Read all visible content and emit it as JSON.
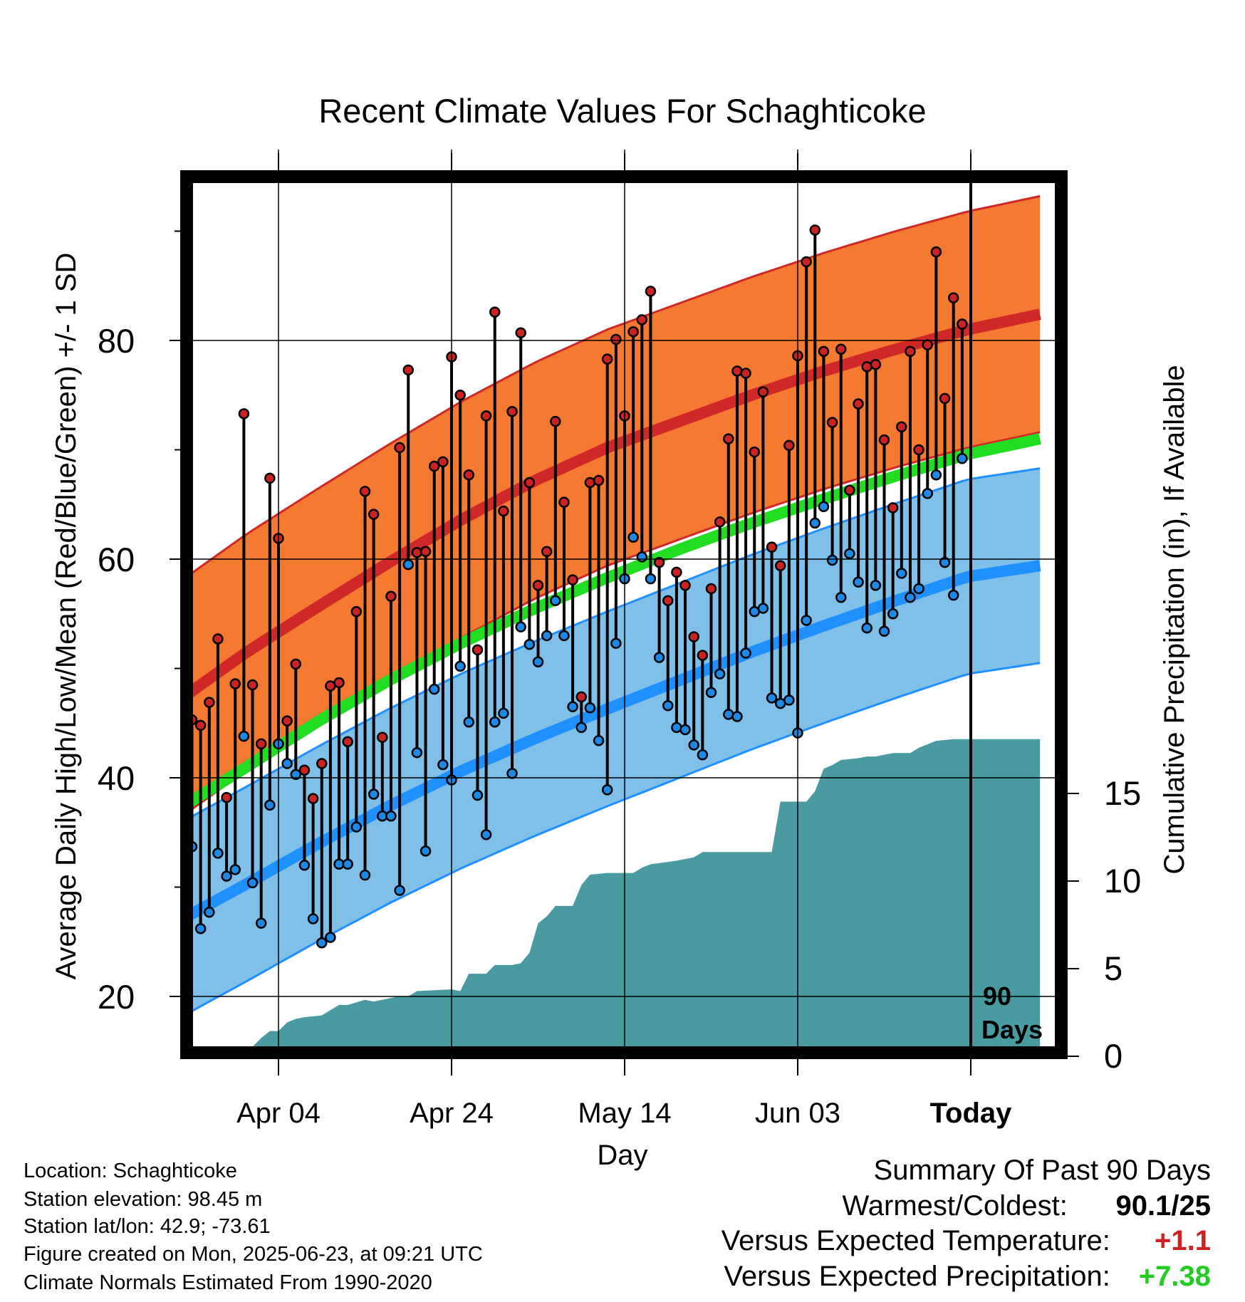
{
  "chart_data": {
    "type": "line",
    "title": "Recent Climate Values For Schaghticoke",
    "xlabel": "Day",
    "ylabel": "Average Daily High/Low/Mean (Red/Blue/Green) +/- 1 SD",
    "y2label": "Cumulative Precipitation (in), If Available",
    "x_tick_labels": [
      "Apr 04",
      "Apr 24",
      "May 14",
      "Jun 03",
      "Today"
    ],
    "y_ticks": [
      20,
      40,
      60,
      80
    ],
    "y2_ticks": [
      0,
      5,
      10,
      15
    ],
    "ylim": [
      15,
      97
    ],
    "y2lim": [
      0,
      30.3
    ],
    "today_marker_label": [
      "90",
      "Days"
    ],
    "colors": {
      "high_band": "#f47a32",
      "high_line": "#d02828",
      "low_band": "#80c0e8",
      "low_line": "#1e90ff",
      "mean_line": "#22dd22",
      "precip": "#4a9aa2",
      "high_dot": "#cc2222",
      "low_dot": "#1e88e5"
    },
    "normals": {
      "x_start": -12,
      "x_end": 88,
      "high_mean": [
        46.8,
        51.5,
        55.7,
        59.8,
        63.7,
        67.2,
        70.2,
        72.6,
        75.0,
        77.2,
        79.2,
        81.0,
        82.4
      ],
      "high_sd": 10.8,
      "low_mean": [
        26.7,
        30.3,
        34.0,
        37.5,
        40.7,
        43.6,
        46.3,
        48.9,
        51.5,
        53.9,
        56.2,
        58.4,
        59.4
      ],
      "low_sd": 8.9,
      "mean": [
        36.9,
        41.0,
        45.2,
        49.0,
        52.4,
        55.5,
        58.3,
        60.9,
        63.3,
        65.5,
        67.6,
        69.6,
        71.0
      ]
    },
    "daily": [
      {
        "day": -10,
        "high": 45.3,
        "low": 33.7
      },
      {
        "day": -9,
        "high": 44.8,
        "low": 26.2
      },
      {
        "day": -8,
        "high": 46.9,
        "low": 27.7
      },
      {
        "day": -7,
        "high": 52.7,
        "low": 33.1
      },
      {
        "day": -6,
        "high": 38.2,
        "low": 31.0
      },
      {
        "day": -5,
        "high": 48.6,
        "low": 31.6
      },
      {
        "day": -4,
        "high": 73.3,
        "low": 43.8
      },
      {
        "day": -3,
        "high": 48.5,
        "low": 30.4
      },
      {
        "day": -2,
        "high": 43.1,
        "low": 26.7
      },
      {
        "day": -1,
        "high": 67.4,
        "low": 37.5
      },
      {
        "day": 0,
        "high": 61.9,
        "low": 43.1
      },
      {
        "day": 1,
        "high": 45.2,
        "low": 41.3
      },
      {
        "day": 2,
        "high": 50.4,
        "low": 40.3
      },
      {
        "day": 3,
        "high": 40.7,
        "low": 32.0
      },
      {
        "day": 4,
        "high": 38.1,
        "low": 27.1
      },
      {
        "day": 5,
        "high": 41.3,
        "low": 24.9
      },
      {
        "day": 6,
        "high": 48.4,
        "low": 25.4
      },
      {
        "day": 7,
        "high": 48.7,
        "low": 32.1
      },
      {
        "day": 8,
        "high": 43.3,
        "low": 32.1
      },
      {
        "day": 9,
        "high": 55.2,
        "low": 35.5
      },
      {
        "day": 10,
        "high": 66.2,
        "low": 31.1
      },
      {
        "day": 11,
        "high": 64.1,
        "low": 38.5
      },
      {
        "day": 12,
        "high": 43.7,
        "low": 36.5
      },
      {
        "day": 13,
        "high": 56.6,
        "low": 36.5
      },
      {
        "day": 14,
        "high": 70.2,
        "low": 29.7
      },
      {
        "day": 15,
        "high": 77.3,
        "low": 59.5
      },
      {
        "day": 16,
        "high": 60.6,
        "low": 42.3
      },
      {
        "day": 17,
        "high": 60.7,
        "low": 33.3
      },
      {
        "day": 18,
        "high": 68.5,
        "low": 48.1
      },
      {
        "day": 19,
        "high": 68.9,
        "low": 41.2
      },
      {
        "day": 20,
        "high": 78.5,
        "low": 39.8
      },
      {
        "day": 21,
        "high": 75.0,
        "low": 50.2
      },
      {
        "day": 22,
        "high": 67.7,
        "low": 45.1
      },
      {
        "day": 23,
        "high": 51.7,
        "low": 38.4
      },
      {
        "day": 24,
        "high": 73.1,
        "low": 34.8
      },
      {
        "day": 25,
        "high": 82.6,
        "low": 45.1
      },
      {
        "day": 26,
        "high": 64.4,
        "low": 45.9
      },
      {
        "day": 27,
        "high": 73.5,
        "low": 40.4
      },
      {
        "day": 28,
        "high": 80.7,
        "low": 53.8
      },
      {
        "day": 29,
        "high": 67.0,
        "low": 52.2
      },
      {
        "day": 30,
        "high": 57.6,
        "low": 50.6
      },
      {
        "day": 31,
        "high": 60.7,
        "low": 53.0
      },
      {
        "day": 32,
        "high": 72.6,
        "low": 56.2
      },
      {
        "day": 33,
        "high": 65.2,
        "low": 53.0
      },
      {
        "day": 34,
        "high": 58.1,
        "low": 46.5
      },
      {
        "day": 35,
        "high": 47.4,
        "low": 44.6
      },
      {
        "day": 36,
        "high": 67.0,
        "low": 46.4
      },
      {
        "day": 37,
        "high": 67.2,
        "low": 43.4
      },
      {
        "day": 38,
        "high": 78.3,
        "low": 38.9
      },
      {
        "day": 39,
        "high": 80.1,
        "low": 52.3
      },
      {
        "day": 40,
        "high": 73.1,
        "low": 58.2
      },
      {
        "day": 41,
        "high": 80.8,
        "low": 62.0
      },
      {
        "day": 42,
        "high": 81.9,
        "low": 60.2
      },
      {
        "day": 43,
        "high": 84.5,
        "low": 58.2
      },
      {
        "day": 44,
        "high": 59.7,
        "low": 51.0
      },
      {
        "day": 45,
        "high": 56.2,
        "low": 46.6
      },
      {
        "day": 46,
        "high": 58.8,
        "low": 44.6
      },
      {
        "day": 47,
        "high": 57.6,
        "low": 44.4
      },
      {
        "day": 48,
        "high": 52.9,
        "low": 43.0
      },
      {
        "day": 49,
        "high": 51.2,
        "low": 42.1
      },
      {
        "day": 50,
        "high": 57.3,
        "low": 47.8
      },
      {
        "day": 51,
        "high": 63.4,
        "low": 49.5
      },
      {
        "day": 52,
        "high": 71.0,
        "low": 45.8
      },
      {
        "day": 53,
        "high": 77.2,
        "low": 45.6
      },
      {
        "day": 54,
        "high": 77.0,
        "low": 51.4
      },
      {
        "day": 55,
        "high": 69.8,
        "low": 55.2
      },
      {
        "day": 56,
        "high": 75.3,
        "low": 55.5
      },
      {
        "day": 57,
        "high": 61.1,
        "low": 47.3
      },
      {
        "day": 58,
        "high": 59.4,
        "low": 46.8
      },
      {
        "day": 59,
        "high": 70.4,
        "low": 47.1
      },
      {
        "day": 60,
        "high": 78.6,
        "low": 44.1
      },
      {
        "day": 61,
        "high": 87.2,
        "low": 54.4
      },
      {
        "day": 62,
        "high": 90.1,
        "low": 63.3
      },
      {
        "day": 63,
        "high": 79.0,
        "low": 64.8
      },
      {
        "day": 64,
        "high": 72.5,
        "low": 59.9
      },
      {
        "day": 65,
        "high": 79.2,
        "low": 56.5
      },
      {
        "day": 66,
        "high": 66.3,
        "low": 60.5
      },
      {
        "day": 67,
        "high": 74.2,
        "low": 57.9
      },
      {
        "day": 68,
        "high": 77.6,
        "low": 53.7
      },
      {
        "day": 69,
        "high": 77.8,
        "low": 57.6
      },
      {
        "day": 70,
        "high": 70.9,
        "low": 53.4
      },
      {
        "day": 71,
        "high": 64.7,
        "low": 55.0
      },
      {
        "day": 72,
        "high": 72.1,
        "low": 58.7
      },
      {
        "day": 73,
        "high": 79.0,
        "low": 56.5
      },
      {
        "day": 74,
        "high": 70.0,
        "low": 57.3
      },
      {
        "day": 75,
        "high": 79.6,
        "low": 66.0
      },
      {
        "day": 76,
        "high": 88.1,
        "low": 67.7
      },
      {
        "day": 77,
        "high": 74.7,
        "low": 59.7
      },
      {
        "day": 78,
        "high": 83.9,
        "low": 56.7
      },
      {
        "day": 79,
        "high": 81.5,
        "low": 69.2
      }
    ],
    "cumulative_precip": [
      {
        "day": -7,
        "value": 0.0
      },
      {
        "day": -5,
        "value": 0.1
      },
      {
        "day": -3,
        "value": 0.1
      },
      {
        "day": -2,
        "value": 0.6
      },
      {
        "day": -1,
        "value": 1.0
      },
      {
        "day": 0,
        "value": 1.0
      },
      {
        "day": 1,
        "value": 1.5
      },
      {
        "day": 2,
        "value": 1.7
      },
      {
        "day": 3,
        "value": 1.8
      },
      {
        "day": 5,
        "value": 1.9
      },
      {
        "day": 6,
        "value": 2.2
      },
      {
        "day": 7,
        "value": 2.5
      },
      {
        "day": 8,
        "value": 2.5
      },
      {
        "day": 10,
        "value": 2.8
      },
      {
        "day": 11,
        "value": 2.7
      },
      {
        "day": 14,
        "value": 3.0
      },
      {
        "day": 15,
        "value": 3.0
      },
      {
        "day": 16,
        "value": 3.3
      },
      {
        "day": 20,
        "value": 3.4
      },
      {
        "day": 21,
        "value": 3.3
      },
      {
        "day": 22,
        "value": 4.3
      },
      {
        "day": 24,
        "value": 4.3
      },
      {
        "day": 25,
        "value": 4.8
      },
      {
        "day": 27,
        "value": 4.8
      },
      {
        "day": 28,
        "value": 4.9
      },
      {
        "day": 29,
        "value": 5.5
      },
      {
        "day": 30,
        "value": 7.2
      },
      {
        "day": 31,
        "value": 7.6
      },
      {
        "day": 32,
        "value": 8.2
      },
      {
        "day": 34,
        "value": 8.2
      },
      {
        "day": 35,
        "value": 9.4
      },
      {
        "day": 36,
        "value": 10.0
      },
      {
        "day": 38,
        "value": 10.1
      },
      {
        "day": 41,
        "value": 10.1
      },
      {
        "day": 42,
        "value": 10.4
      },
      {
        "day": 43,
        "value": 10.6
      },
      {
        "day": 46,
        "value": 10.8
      },
      {
        "day": 47,
        "value": 10.9
      },
      {
        "day": 48,
        "value": 11.0
      },
      {
        "day": 49,
        "value": 11.3
      },
      {
        "day": 57,
        "value": 11.3
      },
      {
        "day": 58,
        "value": 14.2
      },
      {
        "day": 61,
        "value": 14.2
      },
      {
        "day": 62,
        "value": 14.8
      },
      {
        "day": 63,
        "value": 16.1
      },
      {
        "day": 64,
        "value": 16.3
      },
      {
        "day": 65,
        "value": 16.6
      },
      {
        "day": 67,
        "value": 16.7
      },
      {
        "day": 68,
        "value": 16.8
      },
      {
        "day": 69,
        "value": 16.8
      },
      {
        "day": 70,
        "value": 16.9
      },
      {
        "day": 71,
        "value": 17.0
      },
      {
        "day": 73,
        "value": 17.0
      },
      {
        "day": 74,
        "value": 17.3
      },
      {
        "day": 75,
        "value": 17.5
      },
      {
        "day": 76,
        "value": 17.7
      },
      {
        "day": 78,
        "value": 17.8
      },
      {
        "day": 88,
        "value": 17.8
      }
    ]
  },
  "info": {
    "location": "Location: Schaghticoke",
    "elevation": "Station elevation: 98.45 m",
    "latlon": "Station lat/lon: 42.9; -73.61",
    "created": "Figure created on Mon, 2025-06-23, at 09:21 UTC",
    "normals_note": "Climate Normals Estimated From 1990-2020"
  },
  "summary": {
    "heading": "Summary Of Past 90 Days",
    "warm_cold_label": "Warmest/Coldest:",
    "warm_value": "90.1",
    "sep": "/",
    "cold_value": "25",
    "temp_label": "Versus Expected Temperature:",
    "temp_value": "+1.1",
    "temp_color": "#cc2222",
    "precip_label": "Versus Expected Precipitation:",
    "precip_value": "+7.38",
    "precip_color": "#22cc22"
  }
}
